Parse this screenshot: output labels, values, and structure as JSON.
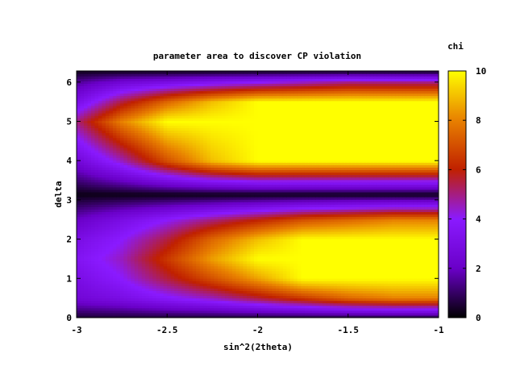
{
  "chart_data": {
    "type": "heatmap",
    "title": "parameter area to discover CP violation",
    "xlabel": "sin^2(2theta)",
    "ylabel": "delta",
    "colorbar_label": "chi",
    "xlim": [
      -3,
      -1
    ],
    "ylim": [
      0,
      6.283
    ],
    "zlim": [
      0,
      10
    ],
    "x_ticks": [
      -3,
      -2.5,
      -2,
      -1.5,
      -1
    ],
    "x_tick_labels": [
      "-3",
      "-2.5",
      "-2",
      "-1.5",
      "-1"
    ],
    "y_ticks": [
      0,
      1,
      2,
      3,
      4,
      5,
      6
    ],
    "y_tick_labels": [
      "0",
      "1",
      "2",
      "3",
      "4",
      "5",
      "6"
    ],
    "colorbar_ticks": [
      0,
      2,
      4,
      6,
      8,
      10
    ],
    "colorbar_tick_labels": [
      "0",
      "2",
      "4",
      "6",
      "8",
      "10"
    ],
    "colormap": [
      "#000000",
      "#6a00c8",
      "#8a1aff",
      "#c02000",
      "#e88000",
      "#ffff00"
    ],
    "grid": false,
    "sample_grid": {
      "x": [
        -3.0,
        -2.75,
        -2.5,
        -2.25,
        -2.0,
        -1.75,
        -1.5,
        -1.25,
        -1.0
      ],
      "y": [
        0.0,
        0.5,
        1.0,
        1.5,
        2.0,
        2.5,
        3.14,
        4.0,
        5.0,
        5.5,
        6.0,
        6.28
      ],
      "z": [
        [
          0.5,
          0.5,
          0.5,
          0.5,
          0.5,
          0.5,
          0.5,
          0.5,
          0.5
        ],
        [
          2.5,
          3.0,
          3.8,
          4.5,
          5.5,
          6.5,
          7.5,
          8.0,
          8.0
        ],
        [
          3.0,
          4.0,
          5.5,
          7.0,
          8.5,
          10.0,
          10.0,
          10.0,
          10.0
        ],
        [
          3.5,
          4.5,
          6.5,
          8.5,
          10.0,
          10.0,
          10.0,
          10.0,
          10.0
        ],
        [
          3.0,
          4.0,
          5.5,
          7.5,
          9.0,
          10.0,
          10.0,
          10.0,
          10.0
        ],
        [
          2.0,
          3.0,
          4.0,
          5.0,
          6.0,
          7.0,
          7.5,
          8.0,
          8.0
        ],
        [
          0.2,
          0.2,
          0.2,
          0.2,
          0.2,
          0.2,
          0.2,
          0.2,
          0.2
        ],
        [
          2.5,
          4.5,
          7.0,
          9.0,
          10.0,
          10.0,
          10.0,
          10.0,
          10.0
        ],
        [
          5.0,
          8.0,
          10.0,
          10.0,
          10.0,
          10.0,
          10.0,
          10.0,
          10.0
        ],
        [
          3.0,
          5.5,
          7.5,
          9.0,
          10.0,
          10.0,
          10.0,
          10.0,
          10.0
        ],
        [
          1.5,
          2.5,
          3.0,
          3.5,
          4.0,
          4.5,
          5.0,
          5.0,
          5.0
        ],
        [
          0.3,
          0.3,
          0.3,
          0.3,
          0.3,
          0.3,
          0.3,
          0.3,
          0.3
        ]
      ]
    }
  }
}
